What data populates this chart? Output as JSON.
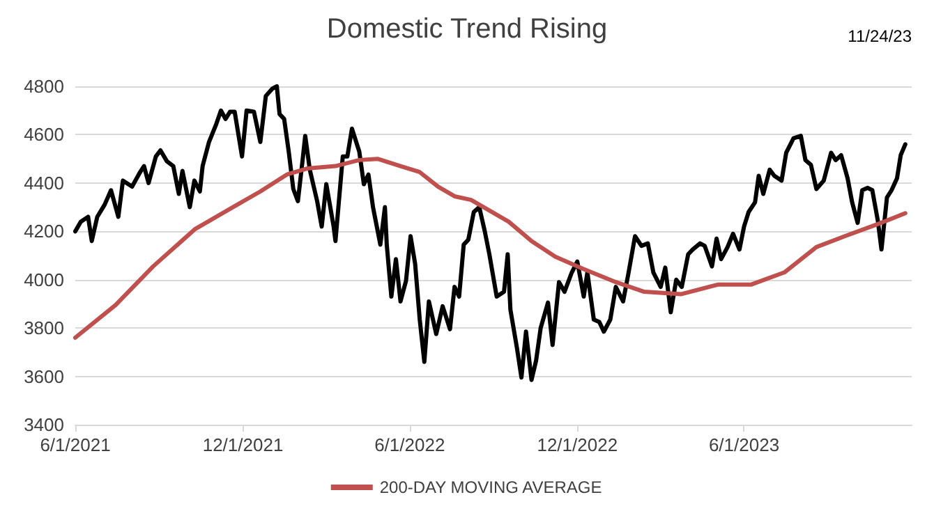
{
  "chart_data": {
    "type": "line",
    "title": "Domestic Trend Rising",
    "annotations": [
      "11/24/23"
    ],
    "xlim": [
      "2021-06-01",
      "2023-12-01"
    ],
    "xticks": [
      {
        "value": "2021-06-01",
        "label": "6/1/2021"
      },
      {
        "value": "2021-12-01",
        "label": "12/1/2021"
      },
      {
        "value": "2022-06-01",
        "label": "6/1/2022"
      },
      {
        "value": "2022-12-01",
        "label": "12/1/2022"
      },
      {
        "value": "2023-06-01",
        "label": "6/1/2023"
      }
    ],
    "ylim": [
      3400,
      4800
    ],
    "yticks": [
      3400,
      3600,
      3800,
      4000,
      4200,
      4400,
      4600,
      4800
    ],
    "grid": "y",
    "legend": "bottom",
    "marker": "none",
    "line_style": "solid",
    "series": [
      {
        "color": "#000000",
        "x": [
          "2021-06-01",
          "2021-06-07",
          "2021-06-15",
          "2021-06-19",
          "2021-06-25",
          "2021-07-03",
          "2021-07-10",
          "2021-07-18",
          "2021-07-23",
          "2021-08-02",
          "2021-08-10",
          "2021-08-15",
          "2021-08-20",
          "2021-08-28",
          "2021-09-02",
          "2021-09-09",
          "2021-09-16",
          "2021-09-22",
          "2021-09-26",
          "2021-10-04",
          "2021-10-09",
          "2021-10-15",
          "2021-10-18",
          "2021-10-25",
          "2021-11-02",
          "2021-11-07",
          "2021-11-12",
          "2021-11-17",
          "2021-11-22",
          "2021-11-30",
          "2021-12-05",
          "2021-12-13",
          "2021-12-20",
          "2021-12-26",
          "2022-01-02",
          "2022-01-07",
          "2022-01-10",
          "2022-01-15",
          "2022-01-20",
          "2022-01-25",
          "2022-01-30",
          "2022-02-04",
          "2022-02-07",
          "2022-02-12",
          "2022-02-20",
          "2022-02-25",
          "2022-03-02",
          "2022-03-10",
          "2022-03-12",
          "2022-03-20",
          "2022-03-25",
          "2022-03-30",
          "2022-04-07",
          "2022-04-12",
          "2022-04-17",
          "2022-04-22",
          "2022-04-30",
          "2022-05-05",
          "2022-05-07",
          "2022-05-12",
          "2022-05-17",
          "2022-05-22",
          "2022-05-28",
          "2022-06-02",
          "2022-06-07",
          "2022-06-12",
          "2022-06-17",
          "2022-06-22",
          "2022-06-30",
          "2022-07-07",
          "2022-07-15",
          "2022-07-20",
          "2022-07-25",
          "2022-07-30",
          "2022-08-04",
          "2022-08-10",
          "2022-08-16",
          "2022-08-22",
          "2022-08-27",
          "2022-09-04",
          "2022-09-12",
          "2022-09-16",
          "2022-09-19",
          "2022-09-26",
          "2022-10-01",
          "2022-10-06",
          "2022-10-12",
          "2022-10-17",
          "2022-10-22",
          "2022-10-30",
          "2022-11-04",
          "2022-11-11",
          "2022-11-17",
          "2022-11-25",
          "2022-12-01",
          "2022-12-08",
          "2022-12-12",
          "2022-12-19",
          "2022-12-25",
          "2022-12-30",
          "2023-01-06",
          "2023-01-12",
          "2023-01-20",
          "2023-01-26",
          "2023-02-02",
          "2023-02-09",
          "2023-02-16",
          "2023-02-22",
          "2023-03-02",
          "2023-03-07",
          "2023-03-13",
          "2023-03-19",
          "2023-03-25",
          "2023-04-01",
          "2023-04-06",
          "2023-04-14",
          "2023-04-19",
          "2023-04-27",
          "2023-05-02",
          "2023-05-07",
          "2023-05-14",
          "2023-05-20",
          "2023-05-27",
          "2023-06-01",
          "2023-06-06",
          "2023-06-13",
          "2023-06-17",
          "2023-06-22",
          "2023-06-29",
          "2023-07-04",
          "2023-07-12",
          "2023-07-17",
          "2023-07-25",
          "2023-08-02",
          "2023-08-07",
          "2023-08-13",
          "2023-08-19",
          "2023-08-27",
          "2023-09-04",
          "2023-09-09",
          "2023-09-15",
          "2023-09-22",
          "2023-09-27",
          "2023-10-03",
          "2023-10-08",
          "2023-10-14",
          "2023-10-19",
          "2023-10-25",
          "2023-10-29",
          "2023-11-04",
          "2023-11-09",
          "2023-11-15",
          "2023-11-19",
          "2023-11-24"
        ],
        "values": [
          4200,
          4240,
          4260,
          4160,
          4260,
          4310,
          4370,
          4260,
          4410,
          4385,
          4440,
          4470,
          4400,
          4510,
          4535,
          4490,
          4470,
          4355,
          4450,
          4300,
          4410,
          4365,
          4470,
          4570,
          4645,
          4700,
          4665,
          4695,
          4695,
          4510,
          4700,
          4695,
          4570,
          4760,
          4790,
          4800,
          4685,
          4665,
          4530,
          4375,
          4325,
          4490,
          4595,
          4455,
          4325,
          4220,
          4395,
          4220,
          4160,
          4510,
          4510,
          4625,
          4530,
          4395,
          4435,
          4300,
          4145,
          4300,
          4145,
          3930,
          4085,
          3910,
          3995,
          4180,
          4065,
          3835,
          3660,
          3910,
          3775,
          3890,
          3795,
          3970,
          3930,
          4145,
          4165,
          4280,
          4300,
          4200,
          4105,
          3930,
          3950,
          4105,
          3875,
          3720,
          3595,
          3785,
          3585,
          3665,
          3800,
          3905,
          3730,
          3990,
          3950,
          4030,
          4075,
          3930,
          4030,
          3835,
          3825,
          3785,
          3835,
          3970,
          3910,
          4030,
          4180,
          4140,
          4150,
          4030,
          3970,
          4050,
          3865,
          4000,
          3970,
          4105,
          4125,
          4150,
          4140,
          4055,
          4170,
          4085,
          4135,
          4190,
          4125,
          4220,
          4280,
          4320,
          4430,
          4355,
          4455,
          4430,
          4410,
          4525,
          4585,
          4595,
          4495,
          4475,
          4375,
          4410,
          4525,
          4495,
          4515,
          4420,
          4320,
          4235,
          4370,
          4380,
          4370,
          4245,
          4125,
          4340,
          4370,
          4420,
          4515,
          4560
        ]
      },
      {
        "name": "200-DAY MOVING AVERAGE",
        "color": "#c0504d",
        "x": [
          "2021-06-01",
          "2021-07-15",
          "2021-08-25",
          "2021-10-10",
          "2021-11-20",
          "2021-12-20",
          "2022-01-18",
          "2022-02-09",
          "2022-03-12",
          "2022-04-07",
          "2022-04-27",
          "2022-05-22",
          "2022-06-12",
          "2022-07-02",
          "2022-07-20",
          "2022-08-07",
          "2022-09-17",
          "2022-10-12",
          "2022-11-07",
          "2022-12-07",
          "2023-01-12",
          "2023-02-12",
          "2023-03-24",
          "2023-05-04",
          "2023-06-09",
          "2023-07-15",
          "2023-08-19",
          "2023-09-19",
          "2023-10-25",
          "2023-11-24"
        ],
        "values": [
          3760,
          3895,
          4055,
          4210,
          4300,
          4365,
          4435,
          4460,
          4470,
          4495,
          4500,
          4470,
          4445,
          4385,
          4345,
          4330,
          4240,
          4160,
          4095,
          4045,
          3990,
          3950,
          3940,
          3980,
          3980,
          4030,
          4135,
          4180,
          4230,
          4275
        ]
      }
    ]
  }
}
